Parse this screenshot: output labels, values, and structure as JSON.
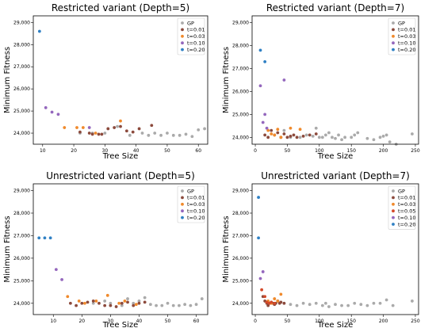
{
  "colors": {
    "GP": "#aaaaaa",
    "t=0.01": "#8c4a3c",
    "t=0.03": "#f08a2c",
    "t=0.05": "#d44a2a",
    "t=0.10": "#9467bd",
    "t=0.20": "#2f80c4"
  },
  "chart_data": [
    {
      "type": "scatter",
      "title": "Restricted variant (Depth=5)",
      "xlabel": "Tree Size",
      "ylabel": "Minimum Fitness",
      "xlim": [
        7,
        63
      ],
      "ylim": [
        23500,
        29300
      ],
      "xticks": [
        10,
        20,
        30,
        40,
        50,
        60
      ],
      "yticks": [
        24000,
        25000,
        26000,
        27000,
        28000,
        29000
      ],
      "ytick_labels": [
        "24,000",
        "25,000",
        "26,000",
        "27,000",
        "28,000",
        "29,000"
      ],
      "legend_position": "top-right",
      "series": [
        {
          "name": "GP",
          "points": [
            [
              22,
              24000
            ],
            [
              26,
              24000
            ],
            [
              30,
              24000
            ],
            [
              34,
              24300
            ],
            [
              38,
              23900
            ],
            [
              42,
              24000
            ],
            [
              44,
              23900
            ],
            [
              46,
              24000
            ],
            [
              48,
              23900
            ],
            [
              50,
              24000
            ],
            [
              52,
              23900
            ],
            [
              54,
              23900
            ],
            [
              56,
              23950
            ],
            [
              58,
              23850
            ],
            [
              60,
              24150
            ],
            [
              62,
              24200
            ]
          ]
        },
        {
          "name": "t=0.01",
          "points": [
            [
              22,
              24050
            ],
            [
              25,
              24000
            ],
            [
              26,
              23950
            ],
            [
              28,
              23950
            ],
            [
              29,
              23950
            ],
            [
              31,
              24200
            ],
            [
              33,
              24250
            ],
            [
              35,
              24300
            ],
            [
              37,
              24100
            ],
            [
              39,
              24050
            ],
            [
              41,
              24200
            ],
            [
              45,
              24350
            ]
          ]
        },
        {
          "name": "t=0.03",
          "points": [
            [
              17,
              24250
            ],
            [
              21,
              24250
            ],
            [
              23,
              24250
            ],
            [
              27,
              24000
            ],
            [
              35,
              24550
            ]
          ]
        },
        {
          "name": "t=0.10",
          "points": [
            [
              11,
              25150
            ],
            [
              13,
              24950
            ],
            [
              15,
              24850
            ],
            [
              25,
              24250
            ]
          ]
        },
        {
          "name": "t=0.20",
          "points": [
            [
              9,
              28600
            ]
          ]
        }
      ]
    },
    {
      "type": "scatter",
      "title": "Restricted variant (Depth=7)",
      "xlabel": "Tree Size",
      "ylabel": "Minimum Fitness",
      "xlim": [
        -5,
        255
      ],
      "ylim": [
        23700,
        29300
      ],
      "xticks": [
        0,
        50,
        100,
        150,
        200,
        250
      ],
      "yticks": [
        24000,
        25000,
        26000,
        27000,
        28000,
        29000
      ],
      "ytick_labels": [
        "24,000",
        "25,000",
        "26,000",
        "27,000",
        "28,000",
        "29,000"
      ],
      "legend_position": "top-right",
      "series": [
        {
          "name": "GP",
          "points": [
            [
              45,
              24300
            ],
            [
              55,
              24000
            ],
            [
              70,
              24000
            ],
            [
              80,
              24100
            ],
            [
              90,
              24050
            ],
            [
              95,
              24400
            ],
            [
              100,
              24000
            ],
            [
              105,
              24000
            ],
            [
              110,
              24100
            ],
            [
              115,
              24200
            ],
            [
              120,
              24000
            ],
            [
              125,
              23950
            ],
            [
              130,
              24100
            ],
            [
              135,
              23900
            ],
            [
              140,
              24000
            ],
            [
              150,
              24000
            ],
            [
              155,
              24100
            ],
            [
              160,
              24200
            ],
            [
              175,
              23950
            ],
            [
              185,
              23900
            ],
            [
              195,
              24000
            ],
            [
              200,
              24050
            ],
            [
              205,
              24100
            ],
            [
              210,
              23800
            ],
            [
              220,
              23700
            ],
            [
              245,
              24150
            ]
          ]
        },
        {
          "name": "t=0.01",
          "points": [
            [
              15,
              24100
            ],
            [
              20,
              24000
            ],
            [
              25,
              24300
            ],
            [
              30,
              24100
            ],
            [
              35,
              24200
            ],
            [
              40,
              24000
            ],
            [
              45,
              24150
            ],
            [
              50,
              24000
            ],
            [
              55,
              24050
            ],
            [
              60,
              24100
            ],
            [
              65,
              24000
            ],
            [
              75,
              24050
            ],
            [
              85,
              24100
            ],
            [
              95,
              24150
            ]
          ]
        },
        {
          "name": "t=0.03",
          "points": [
            [
              20,
              24300
            ],
            [
              25,
              24150
            ],
            [
              30,
              24100
            ],
            [
              35,
              24350
            ],
            [
              40,
              24000
            ],
            [
              55,
              24400
            ],
            [
              70,
              24350
            ]
          ]
        },
        {
          "name": "t=0.10",
          "points": [
            [
              8,
              26250
            ],
            [
              12,
              24650
            ],
            [
              15,
              25000
            ],
            [
              18,
              24400
            ],
            [
              45,
              26500
            ]
          ]
        },
        {
          "name": "t=0.20",
          "points": [
            [
              8,
              27800
            ],
            [
              15,
              27300
            ]
          ]
        }
      ]
    },
    {
      "type": "scatter",
      "title": "Unrestricted variant (Depth=5)",
      "xlabel": "Tree Size",
      "ylabel": "Minimum Fitness",
      "xlim": [
        3,
        64
      ],
      "ylim": [
        23500,
        29300
      ],
      "xticks": [
        10,
        20,
        30,
        40,
        50,
        60
      ],
      "yticks": [
        24000,
        25000,
        26000,
        27000,
        28000,
        29000
      ],
      "ytick_labels": [
        "24,000",
        "25,000",
        "26,000",
        "27,000",
        "28,000",
        "29,000"
      ],
      "legend_position": "top-right",
      "series": [
        {
          "name": "GP",
          "points": [
            [
              24,
              24000
            ],
            [
              28,
              24100
            ],
            [
              30,
              24000
            ],
            [
              34,
              23900
            ],
            [
              36,
              24200
            ],
            [
              38,
              24000
            ],
            [
              40,
              24100
            ],
            [
              42,
              24250
            ],
            [
              44,
              23950
            ],
            [
              46,
              23900
            ],
            [
              48,
              23900
            ],
            [
              50,
              24000
            ],
            [
              52,
              23900
            ],
            [
              54,
              23900
            ],
            [
              56,
              23950
            ],
            [
              58,
              23900
            ],
            [
              60,
              23950
            ],
            [
              62,
              24200
            ]
          ]
        },
        {
          "name": "t=0.01",
          "points": [
            [
              16,
              24000
            ],
            [
              18,
              23900
            ],
            [
              20,
              24000
            ],
            [
              22,
              24050
            ],
            [
              24,
              24100
            ],
            [
              26,
              24000
            ],
            [
              28,
              23900
            ],
            [
              30,
              23900
            ],
            [
              32,
              23850
            ],
            [
              34,
              24000
            ],
            [
              36,
              24050
            ],
            [
              38,
              23900
            ],
            [
              40,
              24000
            ],
            [
              42,
              24050
            ]
          ]
        },
        {
          "name": "t=0.03",
          "points": [
            [
              15,
              24300
            ],
            [
              19,
              24100
            ],
            [
              21,
              24000
            ],
            [
              25,
              24100
            ],
            [
              29,
              24350
            ],
            [
              33,
              24000
            ],
            [
              35,
              24100
            ],
            [
              39,
              23950
            ]
          ]
        },
        {
          "name": "t=0.10",
          "points": [
            [
              11,
              25500
            ],
            [
              13,
              25050
            ]
          ]
        },
        {
          "name": "t=0.20",
          "points": [
            [
              5,
              26900
            ],
            [
              7,
              26900
            ],
            [
              9,
              26900
            ]
          ]
        }
      ]
    },
    {
      "type": "scatter",
      "title": "Unrestricted variant (Depth=7)",
      "xlabel": "Tree Size",
      "ylabel": "Minimum Fitness",
      "xlim": [
        -5,
        255
      ],
      "ylim": [
        23500,
        29300
      ],
      "xticks": [
        0,
        50,
        100,
        150,
        200,
        250
      ],
      "yticks": [
        24000,
        25000,
        26000,
        27000,
        28000,
        29000
      ],
      "ytick_labels": [
        "24,000",
        "25,000",
        "26,000",
        "27,000",
        "28,000",
        "29,000"
      ],
      "legend_position": "top-right",
      "series": [
        {
          "name": "GP",
          "points": [
            [
              45,
              24000
            ],
            [
              55,
              23950
            ],
            [
              65,
              23900
            ],
            [
              75,
              24000
            ],
            [
              85,
              23950
            ],
            [
              95,
              24000
            ],
            [
              105,
              23900
            ],
            [
              110,
              24000
            ],
            [
              115,
              23850
            ],
            [
              125,
              23950
            ],
            [
              135,
              23900
            ],
            [
              145,
              23900
            ],
            [
              155,
              24000
            ],
            [
              165,
              23950
            ],
            [
              175,
              23900
            ],
            [
              185,
              24000
            ],
            [
              195,
              24000
            ],
            [
              205,
              24150
            ],
            [
              215,
              23900
            ],
            [
              245,
              24100
            ]
          ]
        },
        {
          "name": "t=0.01",
          "points": [
            [
              12,
              24300
            ],
            [
              15,
              24100
            ],
            [
              18,
              24000
            ],
            [
              20,
              23900
            ],
            [
              22,
              24000
            ],
            [
              25,
              24050
            ],
            [
              28,
              24000
            ],
            [
              30,
              23950
            ],
            [
              32,
              24000
            ],
            [
              35,
              24100
            ],
            [
              38,
              24000
            ],
            [
              40,
              24050
            ],
            [
              45,
              24000
            ]
          ]
        },
        {
          "name": "t=0.03",
          "points": [
            [
              20,
              24100
            ],
            [
              25,
              24000
            ],
            [
              30,
              24200
            ],
            [
              35,
              24100
            ],
            [
              40,
              24400
            ]
          ]
        },
        {
          "name": "t=0.05",
          "points": [
            [
              10,
              24600
            ],
            [
              15,
              24300
            ],
            [
              18,
              24050
            ],
            [
              22,
              24000
            ],
            [
              25,
              24050
            ],
            [
              30,
              24000
            ]
          ]
        },
        {
          "name": "t=0.10",
          "points": [
            [
              8,
              25100
            ],
            [
              12,
              25400
            ]
          ]
        },
        {
          "name": "t=0.20",
          "points": [
            [
              5,
              28700
            ],
            [
              5,
              26900
            ]
          ]
        }
      ]
    }
  ]
}
